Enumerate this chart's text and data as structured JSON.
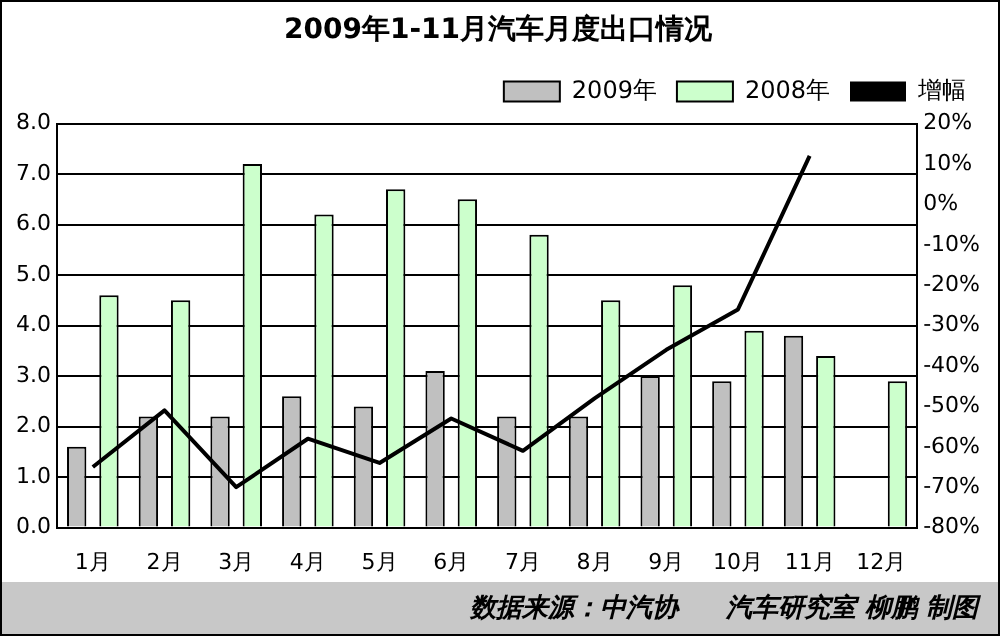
{
  "chart_data": {
    "type": "bar",
    "title": "2009年1-11月汽车月度出口情况",
    "categories": [
      "1月",
      "2月",
      "3月",
      "4月",
      "5月",
      "6月",
      "7月",
      "8月",
      "9月",
      "10月",
      "11月",
      "12月"
    ],
    "series": [
      {
        "name": "2009年",
        "color": "#c0c0c0",
        "values": [
          1.6,
          2.2,
          2.2,
          2.6,
          2.4,
          3.1,
          2.2,
          2.2,
          3.0,
          2.9,
          3.8,
          null
        ]
      },
      {
        "name": "2008年",
        "color": "#ccffcc",
        "values": [
          4.6,
          4.5,
          7.2,
          6.2,
          6.7,
          6.5,
          5.8,
          4.5,
          4.8,
          3.9,
          3.4,
          2.9
        ]
      },
      {
        "name": "增幅",
        "type": "line",
        "axis": "y2",
        "color": "#000000",
        "values": [
          -65,
          -51,
          -70,
          -58,
          -64,
          -53,
          -61,
          -48,
          -36,
          -26,
          12,
          null
        ]
      }
    ],
    "ylim": [
      0,
      8
    ],
    "yticks": [
      {
        "value": 0,
        "label": "0.0"
      },
      {
        "value": 1,
        "label": "1.0"
      },
      {
        "value": 2,
        "label": "2.0"
      },
      {
        "value": 3,
        "label": "3.0"
      },
      {
        "value": 4,
        "label": "4.0"
      },
      {
        "value": 5,
        "label": "5.0"
      },
      {
        "value": 6,
        "label": "6.0"
      },
      {
        "value": 7,
        "label": "7.0"
      },
      {
        "value": 8,
        "label": "8.0"
      }
    ],
    "y2lim": [
      -80,
      20
    ],
    "y2ticks": [
      {
        "value": -80,
        "label": "-80%"
      },
      {
        "value": -70,
        "label": "-70%"
      },
      {
        "value": -60,
        "label": "-60%"
      },
      {
        "value": -50,
        "label": "-50%"
      },
      {
        "value": -40,
        "label": "-40%"
      },
      {
        "value": -30,
        "label": "-30%"
      },
      {
        "value": -20,
        "label": "-20%"
      },
      {
        "value": -10,
        "label": "-10%"
      },
      {
        "value": 0,
        "label": "0%"
      },
      {
        "value": 10,
        "label": "10%"
      },
      {
        "value": 20,
        "label": "20%"
      }
    ],
    "grid": "y",
    "legend": "top right",
    "marker": "none",
    "annotations": [
      "数据来源：中汽协",
      "汽车研究室 柳鹏 制图"
    ]
  }
}
